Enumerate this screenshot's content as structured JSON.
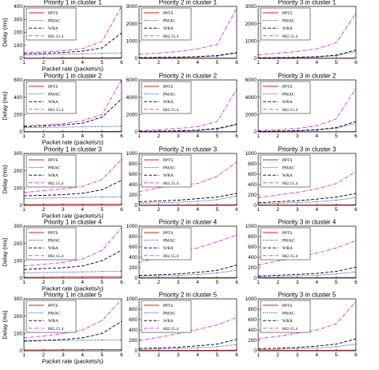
{
  "chart_data": [
    {
      "type": "line",
      "title": "Priority 1 in cluster 1",
      "xlabel": "Packet rate (packets/s)",
      "ylabel": "Delay (ms)",
      "x": [
        1,
        2,
        3,
        4,
        5,
        6
      ],
      "xlim": [
        1,
        6
      ],
      "ylim": [
        0,
        400
      ],
      "yticks": [
        0,
        100,
        200,
        300,
        400
      ],
      "series": [
        {
          "name": "PPTS",
          "values": [
            2,
            2,
            3,
            3,
            4,
            5
          ]
        },
        {
          "name": "PMAC",
          "values": [
            25,
            28,
            32,
            35,
            38,
            42
          ]
        },
        {
          "name": "WRA",
          "values": [
            35,
            38,
            45,
            55,
            80,
            195
          ]
        },
        {
          "name": "802.15.4",
          "values": [
            45,
            50,
            58,
            75,
            130,
            400
          ]
        }
      ]
    },
    {
      "type": "line",
      "title": "Priority 2 in cluster 1",
      "xlabel": "",
      "ylabel": "",
      "x": [
        1,
        2,
        3,
        4,
        5,
        6
      ],
      "xlim": [
        1,
        6
      ],
      "ylim": [
        0,
        3000
      ],
      "yticks": [
        0,
        1000,
        2000,
        3000
      ],
      "series": [
        {
          "name": "PPTS",
          "values": [
            5,
            6,
            7,
            8,
            10,
            12
          ]
        },
        {
          "name": "PMAC",
          "values": [
            30,
            40,
            55,
            80,
            130,
            290
          ]
        },
        {
          "name": "WRA",
          "values": [
            40,
            55,
            70,
            100,
            160,
            330
          ]
        },
        {
          "name": "802.15.4",
          "values": [
            240,
            300,
            400,
            550,
            800,
            2900
          ]
        }
      ]
    },
    {
      "type": "line",
      "title": "Priority 3 in cluster 1",
      "xlabel": "",
      "ylabel": "",
      "x": [
        1,
        2,
        3,
        4,
        5,
        6
      ],
      "xlim": [
        1,
        6
      ],
      "ylim": [
        0,
        3000
      ],
      "yticks": [
        0,
        1000,
        2000,
        3000
      ],
      "series": [
        {
          "name": "PPTS",
          "values": [
            5,
            6,
            7,
            8,
            10,
            12
          ]
        },
        {
          "name": "PMAC",
          "values": [
            20,
            30,
            50,
            80,
            150,
            400
          ]
        },
        {
          "name": "WRA",
          "values": [
            30,
            40,
            60,
            100,
            180,
            480
          ]
        },
        {
          "name": "802.15.4",
          "values": [
            200,
            300,
            400,
            550,
            900,
            2600
          ]
        }
      ]
    },
    {
      "type": "line",
      "title": "Priority 1 in cluster 2",
      "xlabel": "Packet rate (packets/s)",
      "ylabel": "Delay (ms)",
      "x": [
        1,
        2,
        3,
        4,
        5,
        6
      ],
      "xlim": [
        1,
        6
      ],
      "ylim": [
        0,
        600
      ],
      "yticks": [
        0,
        200,
        400,
        600
      ],
      "series": [
        {
          "name": "PPTS",
          "values": [
            3,
            3,
            4,
            4,
            5,
            6
          ]
        },
        {
          "name": "PMAC",
          "values": [
            50,
            52,
            55,
            58,
            62,
            65
          ]
        },
        {
          "name": "WRA",
          "values": [
            60,
            68,
            80,
            100,
            170,
            380
          ]
        },
        {
          "name": "802.15.4",
          "values": [
            70,
            80,
            95,
            130,
            200,
            600
          ]
        }
      ]
    },
    {
      "type": "line",
      "title": "Priority 2 in cluster 2",
      "xlabel": "",
      "ylabel": "",
      "x": [
        1,
        2,
        3,
        4,
        5,
        6
      ],
      "xlim": [
        1,
        6
      ],
      "ylim": [
        0,
        6000
      ],
      "yticks": [
        0,
        2000,
        4000,
        6000
      ],
      "series": [
        {
          "name": "PPTS",
          "values": [
            10,
            12,
            14,
            16,
            20,
            25
          ]
        },
        {
          "name": "PMAC",
          "values": [
            40,
            60,
            90,
            150,
            300,
            800
          ]
        },
        {
          "name": "WRA",
          "values": [
            60,
            80,
            120,
            200,
            400,
            900
          ]
        },
        {
          "name": "802.15.4",
          "values": [
            150,
            250,
            400,
            600,
            1200,
            4900
          ]
        }
      ]
    },
    {
      "type": "line",
      "title": "Priority 3 in cluster 2",
      "xlabel": "",
      "ylabel": "",
      "x": [
        1,
        2,
        3,
        4,
        5,
        6
      ],
      "xlim": [
        1,
        6
      ],
      "ylim": [
        0,
        6000
      ],
      "yticks": [
        0,
        2000,
        4000,
        6000
      ],
      "series": [
        {
          "name": "PPTS",
          "values": [
            10,
            12,
            14,
            16,
            20,
            25
          ]
        },
        {
          "name": "PMAC",
          "values": [
            40,
            60,
            100,
            200,
            400,
            1000
          ]
        },
        {
          "name": "WRA",
          "values": [
            60,
            90,
            140,
            250,
            500,
            1200
          ]
        },
        {
          "name": "802.15.4",
          "values": [
            150,
            250,
            400,
            700,
            1500,
            5000
          ]
        }
      ]
    },
    {
      "type": "line",
      "title": "Priority 1 in cluster 3",
      "xlabel": "Packet rate (packets/s)",
      "ylabel": "Delay (ms)",
      "x": [
        1,
        2,
        3,
        4,
        5,
        6
      ],
      "xlim": [
        1,
        6
      ],
      "ylim": [
        0,
        300
      ],
      "yticks": [
        0,
        100,
        200,
        300
      ],
      "series": [
        {
          "name": "PPTS",
          "values": [
            5,
            5,
            6,
            6,
            7,
            8
          ]
        },
        {
          "name": "PMAC",
          "values": [
            40,
            42,
            44,
            46,
            48,
            50
          ]
        },
        {
          "name": "WRA",
          "values": [
            55,
            58,
            62,
            70,
            90,
            145
          ]
        },
        {
          "name": "802.15.4",
          "values": [
            75,
            85,
            95,
            110,
            150,
            265
          ]
        }
      ]
    },
    {
      "type": "line",
      "title": "Priority 2 in cluster 3",
      "xlabel": "",
      "ylabel": "",
      "x": [
        1,
        2,
        3,
        4,
        5,
        6
      ],
      "xlim": [
        1,
        6
      ],
      "ylim": [
        0,
        1000
      ],
      "yticks": [
        0,
        200,
        400,
        600,
        800,
        1000
      ],
      "series": [
        {
          "name": "PPTS",
          "values": [
            5,
            6,
            7,
            8,
            10,
            12
          ]
        },
        {
          "name": "PMAC",
          "values": [
            40,
            50,
            60,
            80,
            110,
            180
          ]
        },
        {
          "name": "WRA",
          "values": [
            70,
            85,
            100,
            130,
            160,
            230
          ]
        },
        {
          "name": "802.15.4",
          "values": [
            260,
            340,
            390,
            420,
            560,
            830
          ]
        }
      ]
    },
    {
      "type": "line",
      "title": "Priority 3 in cluster 3",
      "xlabel": "",
      "ylabel": "",
      "x": [
        1,
        2,
        3,
        4,
        5,
        6
      ],
      "xlim": [
        1,
        6
      ],
      "ylim": [
        0,
        1000
      ],
      "yticks": [
        0,
        200,
        400,
        600,
        800,
        1000
      ],
      "series": [
        {
          "name": "PPTS",
          "values": [
            5,
            6,
            7,
            8,
            10,
            12
          ]
        },
        {
          "name": "PMAC",
          "values": [
            30,
            40,
            55,
            70,
            100,
            150
          ]
        },
        {
          "name": "WRA",
          "values": [
            50,
            70,
            90,
            120,
            160,
            230
          ]
        },
        {
          "name": "802.15.4",
          "values": [
            150,
            200,
            250,
            320,
            420,
            650
          ]
        }
      ]
    },
    {
      "type": "line",
      "title": "Priority 1 in cluster 4",
      "xlabel": "Packet rate (packets/s)",
      "ylabel": "Delay (ms)",
      "x": [
        1,
        2,
        3,
        4,
        5,
        6
      ],
      "xlim": [
        1,
        6
      ],
      "ylim": [
        0,
        300
      ],
      "yticks": [
        0,
        100,
        200,
        300
      ],
      "series": [
        {
          "name": "PPTS",
          "values": [
            5,
            5,
            6,
            6,
            7,
            8
          ]
        },
        {
          "name": "PMAC",
          "values": [
            30,
            32,
            34,
            36,
            38,
            40
          ]
        },
        {
          "name": "WRA",
          "values": [
            50,
            55,
            60,
            70,
            100,
            160
          ]
        },
        {
          "name": "802.15.4",
          "values": [
            70,
            80,
            90,
            110,
            160,
            290
          ]
        }
      ]
    },
    {
      "type": "line",
      "title": "Priority 2 in cluster 4",
      "xlabel": "",
      "ylabel": "",
      "x": [
        1,
        2,
        3,
        4,
        5,
        6
      ],
      "xlim": [
        1,
        6
      ],
      "ylim": [
        0,
        1000
      ],
      "yticks": [
        0,
        200,
        400,
        600,
        800,
        1000
      ],
      "series": [
        {
          "name": "PPTS",
          "values": [
            5,
            6,
            7,
            8,
            10,
            12
          ]
        },
        {
          "name": "PMAC",
          "values": [
            30,
            40,
            50,
            70,
            100,
            150
          ]
        },
        {
          "name": "WRA",
          "values": [
            50,
            65,
            80,
            110,
            150,
            250
          ]
        },
        {
          "name": "802.15.4",
          "values": [
            300,
            400,
            500,
            580,
            700,
            830
          ]
        }
      ]
    },
    {
      "type": "line",
      "title": "Priority 3 in cluster 4",
      "xlabel": "",
      "ylabel": "",
      "x": [
        1,
        2,
        3,
        4,
        5,
        6
      ],
      "xlim": [
        1,
        6
      ],
      "ylim": [
        0,
        1000
      ],
      "yticks": [
        0,
        200,
        400,
        600,
        800,
        1000
      ],
      "series": [
        {
          "name": "PPTS",
          "values": [
            5,
            6,
            7,
            8,
            10,
            12
          ]
        },
        {
          "name": "PMAC",
          "values": [
            20,
            30,
            40,
            55,
            80,
            120
          ]
        },
        {
          "name": "WRA",
          "values": [
            40,
            55,
            70,
            90,
            130,
            210
          ]
        },
        {
          "name": "802.15.4",
          "values": [
            250,
            330,
            400,
            480,
            580,
            720
          ]
        }
      ]
    },
    {
      "type": "line",
      "title": "Priority 1 in cluster 5",
      "xlabel": "Packet rate (packets/s)",
      "ylabel": "Delay (ms)",
      "x": [
        1,
        2,
        3,
        4,
        5,
        6
      ],
      "xlim": [
        1,
        6
      ],
      "ylim": [
        0,
        300
      ],
      "yticks": [
        0,
        100,
        200,
        300
      ],
      "series": [
        {
          "name": "PPTS",
          "values": [
            5,
            5,
            6,
            6,
            7,
            8
          ]
        },
        {
          "name": "PMAC",
          "values": [
            60,
            60,
            61,
            61,
            62,
            62
          ]
        },
        {
          "name": "WRA",
          "values": [
            55,
            60,
            65,
            75,
            100,
            170
          ]
        },
        {
          "name": "802.15.4",
          "values": [
            75,
            85,
            100,
            120,
            175,
            295
          ]
        }
      ]
    },
    {
      "type": "line",
      "title": "Priority 2 in cluster 5",
      "xlabel": "",
      "ylabel": "",
      "x": [
        1,
        2,
        3,
        4,
        5,
        6
      ],
      "xlim": [
        1,
        6
      ],
      "ylim": [
        0,
        1000
      ],
      "yticks": [
        0,
        200,
        400,
        600,
        800,
        1000
      ],
      "series": [
        {
          "name": "PPTS",
          "values": [
            5,
            6,
            7,
            8,
            10,
            12
          ]
        },
        {
          "name": "PMAC",
          "values": [
            25,
            35,
            45,
            60,
            80,
            120
          ]
        },
        {
          "name": "WRA",
          "values": [
            45,
            55,
            70,
            95,
            130,
            220
          ]
        },
        {
          "name": "802.15.4",
          "values": [
            200,
            260,
            330,
            410,
            500,
            640
          ]
        }
      ]
    },
    {
      "type": "line",
      "title": "Priority 3 in cluster 5",
      "xlabel": "",
      "ylabel": "",
      "x": [
        1,
        2,
        3,
        4,
        5,
        6
      ],
      "xlim": [
        1,
        6
      ],
      "ylim": [
        0,
        1000
      ],
      "yticks": [
        0,
        200,
        400,
        600,
        800,
        1000
      ],
      "series": [
        {
          "name": "PPTS",
          "values": [
            5,
            6,
            7,
            8,
            10,
            12
          ]
        },
        {
          "name": "PMAC",
          "values": [
            20,
            28,
            40,
            55,
            80,
            130
          ]
        },
        {
          "name": "WRA",
          "values": [
            40,
            50,
            65,
            90,
            130,
            230
          ]
        },
        {
          "name": "802.15.4",
          "values": [
            230,
            280,
            340,
            400,
            520,
            950
          ]
        }
      ]
    }
  ],
  "series_style": {
    "PPTS": {
      "color": "#e41a1c",
      "dash": ""
    },
    "PMAC": {
      "color": "#1f3fd0",
      "dash": "1.2,1.2"
    },
    "WRA": {
      "color": "#000000",
      "dash": "4,2"
    },
    "802.15.4": {
      "color": "#e01be0",
      "dash": "4,1.5,1,1.5"
    }
  },
  "axis_color": "#000000",
  "background": "#ffffff"
}
